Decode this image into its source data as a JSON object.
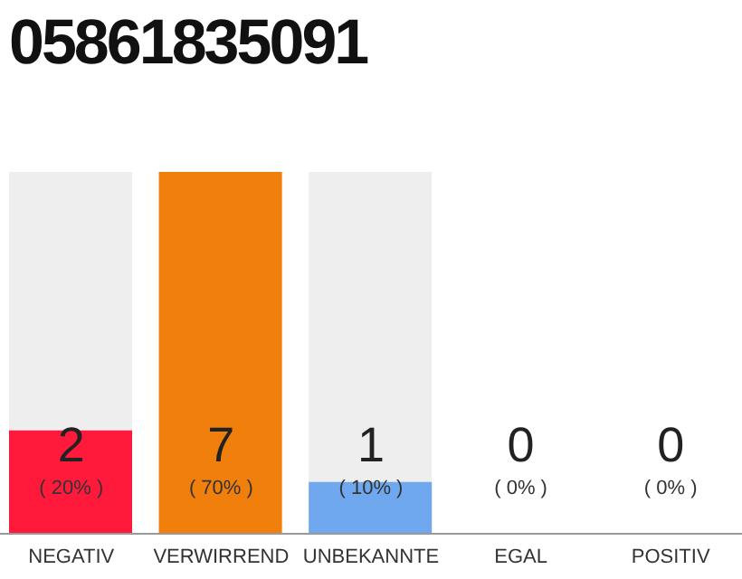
{
  "chart_data": {
    "type": "bar",
    "title": "05861835091",
    "categories": [
      "NEGATIV",
      "VERWIRREND",
      "UNBEKANNTE",
      "EGAL",
      "POSITIV"
    ],
    "values": [
      2,
      7,
      1,
      0,
      0
    ],
    "colors": [
      "#ff1a3c",
      "#f07f0b",
      "#6fa8ef",
      "#d9d9d9",
      "#d9d9d9"
    ],
    "value_labels": [
      "2",
      "7",
      "1",
      "0",
      "0"
    ],
    "annotations": [
      "( 20% )",
      "( 70% )",
      "( 10% )",
      "( 0% )",
      "( 0% )"
    ],
    "tick_labels": "x"
  }
}
